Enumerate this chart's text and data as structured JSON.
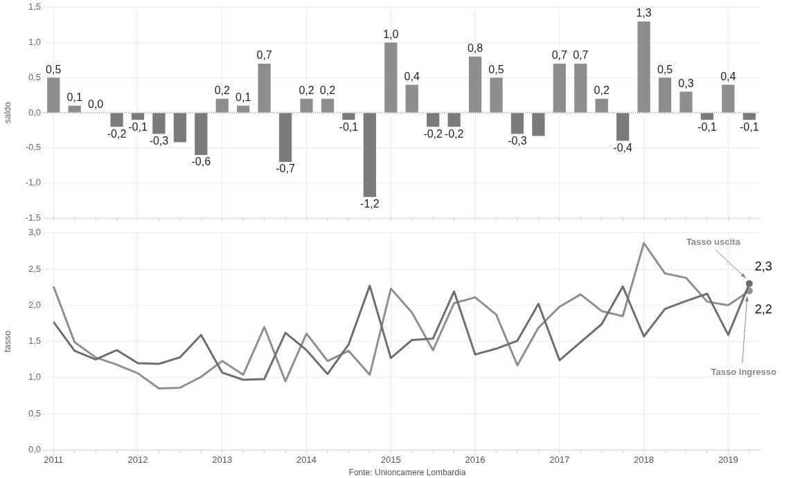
{
  "chart_data": [
    {
      "type": "bar",
      "ylabel": "saldo",
      "categories": [
        "2011",
        null,
        null,
        null,
        "2012",
        null,
        null,
        null,
        "2013",
        null,
        null,
        null,
        "2014",
        null,
        null,
        null,
        "2015",
        null,
        null,
        null,
        "2016",
        null,
        null,
        null,
        "2017",
        null,
        null,
        null,
        "2018",
        null,
        null,
        null,
        "2019",
        null
      ],
      "values": [
        0.5,
        0.1,
        0.0,
        -0.2,
        -0.1,
        -0.3,
        -0.42,
        -0.6,
        0.2,
        0.1,
        0.7,
        -0.7,
        0.2,
        0.2,
        -0.1,
        -1.2,
        1.0,
        0.4,
        -0.2,
        -0.2,
        0.8,
        0.5,
        -0.3,
        -0.33,
        0.7,
        0.7,
        0.2,
        -0.4,
        1.3,
        0.5,
        0.3,
        -0.1,
        0.4,
        -0.1
      ],
      "value_labels": [
        "0,5",
        "0,1",
        "0,0",
        "-0,2",
        "-0,1",
        "-0,3",
        null,
        "-0,6",
        "0,2",
        "0,1",
        "0,7",
        "-0,7",
        "0,2",
        "0,2",
        "-0,1",
        "-1,2",
        "1,0",
        "0,4",
        "-0,2",
        "-0,2",
        "0,8",
        "0,5",
        "-0,3",
        null,
        "0,7",
        "0,7",
        "0,2",
        "-0,4",
        "1,3",
        "0,5",
        "0,3",
        "-0,1",
        "0,4",
        "-0,1"
      ],
      "colors": [
        "#8e8e8e",
        "#8e8e8e",
        "#8e8e8e",
        "#7b7b7b",
        "#7b7b7b",
        "#7b7b7b",
        "#7b7b7b",
        "#7b7b7b",
        "#8e8e8e",
        "#8e8e8e",
        "#8e8e8e",
        "#7b7b7b",
        "#8e8e8e",
        "#8e8e8e",
        "#7b7b7b",
        "#7b7b7b",
        "#8e8e8e",
        "#8e8e8e",
        "#7b7b7b",
        "#7b7b7b",
        "#8e8e8e",
        "#8e8e8e",
        "#7b7b7b",
        "#7b7b7b",
        "#8e8e8e",
        "#8e8e8e",
        "#8e8e8e",
        "#7b7b7b",
        "#8e8e8e",
        "#8e8e8e",
        "#8e8e8e",
        "#7b7b7b",
        "#8e8e8e",
        "#7b7b7b"
      ],
      "ylim": [
        -1.5,
        1.5
      ],
      "yticks": [
        {
          "value": -1.5,
          "label": "-1,5"
        },
        {
          "value": -1,
          "label": "-1,0"
        },
        {
          "value": -0.5,
          "label": "-0,5"
        },
        {
          "value": 0,
          "label": "0,0"
        },
        {
          "value": 0.5,
          "label": "0,5"
        },
        {
          "value": 1,
          "label": "1,0"
        },
        {
          "value": 1.5,
          "label": "1,5"
        }
      ],
      "ref_lines": [
        {
          "axis": "y",
          "value": 0,
          "color": "#777777",
          "line_style": "dotted"
        }
      ],
      "grid": true,
      "legend": false,
      "tick_labels": "y"
    },
    {
      "type": "line",
      "ylabel": "tasso",
      "annotations": [
        "Fonte: Unioncamere Lombardia"
      ],
      "categories": [
        "2011",
        null,
        null,
        null,
        "2012",
        null,
        null,
        null,
        "2013",
        null,
        null,
        null,
        "2014",
        null,
        null,
        null,
        "2015",
        null,
        null,
        null,
        "2016",
        null,
        null,
        null,
        "2017",
        null,
        null,
        null,
        "2018",
        null,
        null,
        null,
        "2019",
        null
      ],
      "series": [
        {
          "name": "Tasso uscita",
          "color": "#6e6e6e",
          "values": [
            1.77,
            1.37,
            1.25,
            1.38,
            1.2,
            1.19,
            1.28,
            1.59,
            1.07,
            0.97,
            0.98,
            1.62,
            1.38,
            1.05,
            1.46,
            2.27,
            1.27,
            1.52,
            1.54,
            2.19,
            1.32,
            1.4,
            1.51,
            2.02,
            1.24,
            1.49,
            1.74,
            2.26,
            1.57,
            1.95,
            2.06,
            2.16,
            1.59,
            2.3
          ],
          "value_labels": [
            null,
            null,
            null,
            null,
            null,
            null,
            null,
            null,
            null,
            null,
            null,
            null,
            null,
            null,
            null,
            null,
            null,
            null,
            null,
            null,
            null,
            null,
            null,
            null,
            null,
            null,
            null,
            null,
            null,
            null,
            null,
            null,
            null,
            "2,3"
          ]
        },
        {
          "name": "Tasso ingresso",
          "color": "#8f8f8f",
          "values": [
            2.26,
            1.49,
            1.28,
            1.18,
            1.06,
            0.85,
            0.86,
            1.01,
            1.23,
            1.04,
            1.7,
            0.95,
            1.61,
            1.23,
            1.37,
            1.04,
            2.23,
            1.9,
            1.38,
            2.03,
            2.11,
            1.87,
            1.17,
            1.69,
            1.98,
            2.15,
            1.92,
            1.85,
            2.86,
            2.44,
            2.38,
            2.05,
            2.0,
            2.2
          ],
          "value_labels": [
            null,
            null,
            null,
            null,
            null,
            null,
            null,
            null,
            null,
            null,
            null,
            null,
            null,
            null,
            null,
            null,
            null,
            null,
            null,
            null,
            null,
            null,
            null,
            null,
            null,
            null,
            null,
            null,
            null,
            null,
            null,
            null,
            null,
            "2,2"
          ]
        }
      ],
      "ylim": [
        0,
        3
      ],
      "yticks": [
        {
          "value": 0,
          "label": "0,0"
        },
        {
          "value": 0.5,
          "label": "0,5"
        },
        {
          "value": 1,
          "label": "1,0"
        },
        {
          "value": 1.5,
          "label": "1,5"
        },
        {
          "value": 2,
          "label": "2,0"
        },
        {
          "value": 2.5,
          "label": "2,5"
        },
        {
          "value": 3,
          "label": "3,0"
        }
      ],
      "grid": true,
      "legend": false
    }
  ]
}
